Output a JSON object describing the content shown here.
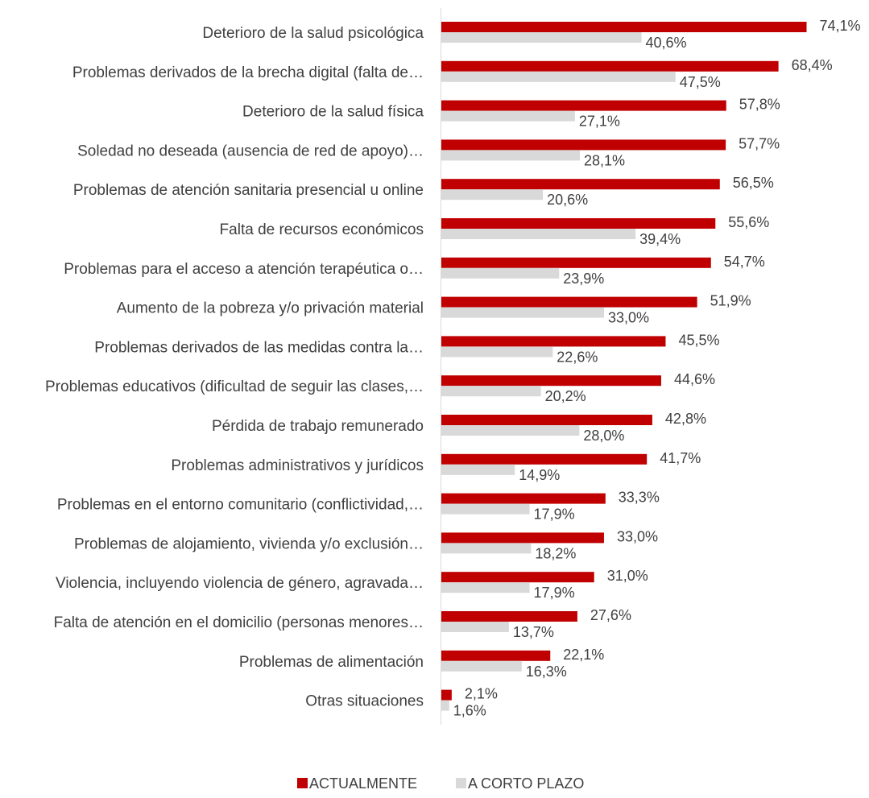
{
  "chart_data": {
    "type": "bar",
    "orientation": "horizontal",
    "categories": [
      "Deterioro de la salud psicológica",
      "Problemas derivados de la brecha digital (falta de…",
      "Deterioro de la salud física",
      "Soledad no deseada (ausencia de red de apoyo)…",
      "Problemas de atención sanitaria presencial u online",
      "Falta de recursos económicos",
      "Problemas para el acceso a atención terapéutica o…",
      "Aumento de la pobreza y/o privación material",
      "Problemas derivados de las medidas contra la…",
      "Problemas educativos (dificultad de seguir las clases,…",
      "Pérdida de trabajo remunerado",
      "Problemas administrativos y jurídicos",
      "Problemas en el entorno comunitario (conflictividad,…",
      "Problemas de alojamiento, vivienda y/o exclusión…",
      "Violencia, incluyendo violencia de género, agravada…",
      "Falta de atención en el domicilio (personas menores…",
      "Problemas de alimentación",
      "Otras situaciones"
    ],
    "series": [
      {
        "name": "ACTUALMENTE",
        "color": "#c00000",
        "values": [
          74.1,
          68.4,
          57.8,
          57.7,
          56.5,
          55.6,
          54.7,
          51.9,
          45.5,
          44.6,
          42.8,
          41.7,
          33.3,
          33.0,
          31.0,
          27.6,
          22.1,
          2.1
        ],
        "labels": [
          "74,1%",
          "68,4%",
          "57,8%",
          "57,7%",
          "56,5%",
          "55,6%",
          "54,7%",
          "51,9%",
          "45,5%",
          "44,6%",
          "42,8%",
          "41,7%",
          "33,3%",
          "33,0%",
          "31,0%",
          "27,6%",
          "22,1%",
          "2,1%"
        ]
      },
      {
        "name": "A CORTO PLAZO",
        "color": "#d9d9d9",
        "values": [
          40.6,
          47.5,
          27.1,
          28.1,
          20.6,
          39.4,
          23.9,
          33.0,
          22.6,
          20.2,
          28.0,
          14.9,
          17.9,
          18.2,
          17.9,
          13.7,
          16.3,
          1.6
        ],
        "labels": [
          "40,6%",
          "47,5%",
          "27,1%",
          "28,1%",
          "20,6%",
          "39,4%",
          "23,9%",
          "33,0%",
          "22,6%",
          "20,2%",
          "28,0%",
          "14,9%",
          "17,9%",
          "18,2%",
          "17,9%",
          "13,7%",
          "16,3%",
          "1,6%"
        ]
      }
    ],
    "xlim": [
      0,
      100
    ],
    "grid": false,
    "legend_position": "bottom"
  }
}
